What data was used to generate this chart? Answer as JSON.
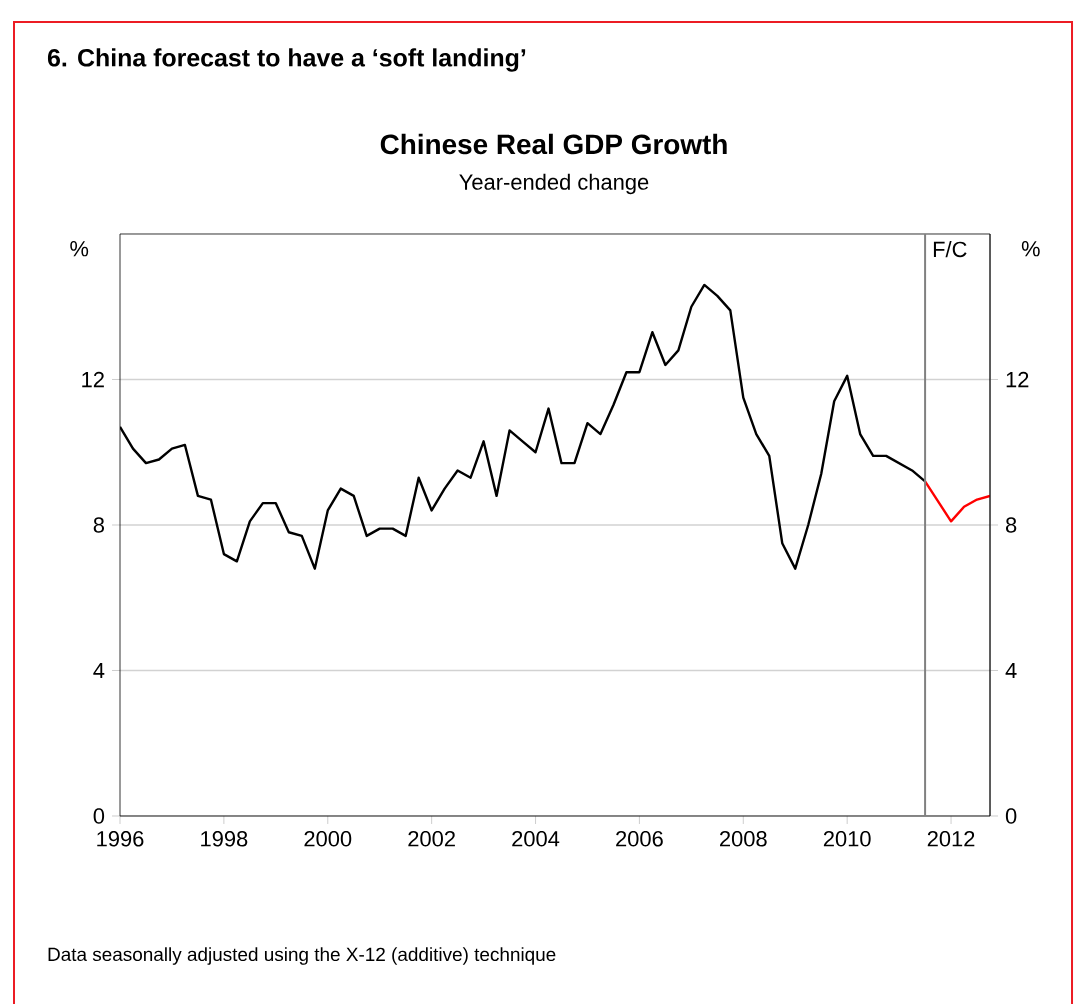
{
  "chart_data": {
    "type": "line",
    "title": "Chinese Real GDP Growth",
    "subtitle": "Year-ended change",
    "annotations": [
      "6. China forecast to have a ‘soft landing’",
      "Data seasonally adjusted using the X-12 (additive) technique"
    ],
    "ylabel": "%",
    "y2label": "%",
    "series": [
      {
        "color": "#000000",
        "x": [
          1996.0,
          1996.25,
          1996.5,
          1996.75,
          1997.0,
          1997.25,
          1997.5,
          1997.75,
          1998.0,
          1998.25,
          1998.5,
          1998.75,
          1999.0,
          1999.25,
          1999.5,
          1999.75,
          2000.0,
          2000.25,
          2000.5,
          2000.75,
          2001.0,
          2001.25,
          2001.5,
          2001.75,
          2002.0,
          2002.25,
          2002.5,
          2002.75,
          2003.0,
          2003.25,
          2003.5,
          2003.75,
          2004.0,
          2004.25,
          2004.5,
          2004.75,
          2005.0,
          2005.25,
          2005.5,
          2005.75,
          2006.0,
          2006.25,
          2006.5,
          2006.75,
          2007.0,
          2007.25,
          2007.5,
          2007.75,
          2008.0,
          2008.25,
          2008.5,
          2008.75,
          2009.0,
          2009.25,
          2009.5,
          2009.75,
          2010.0,
          2010.25,
          2010.5,
          2010.75,
          2011.0,
          2011.25,
          2011.5
        ],
        "values": [
          10.7,
          10.1,
          9.7,
          9.8,
          10.1,
          10.2,
          8.8,
          8.7,
          7.2,
          7.0,
          8.1,
          8.6,
          8.6,
          7.8,
          7.7,
          6.8,
          8.4,
          9.0,
          8.8,
          7.7,
          7.9,
          7.9,
          7.7,
          9.3,
          8.4,
          9.0,
          9.5,
          9.3,
          10.3,
          8.8,
          10.6,
          10.3,
          10.0,
          11.2,
          9.7,
          9.7,
          10.8,
          10.5,
          11.3,
          12.2,
          12.2,
          13.3,
          12.4,
          12.8,
          14.0,
          14.6,
          14.3,
          13.9,
          11.5,
          10.5,
          9.9,
          7.5,
          6.8,
          8.0,
          9.4,
          11.4,
          12.1,
          10.5,
          9.9,
          9.9,
          9.7,
          9.5,
          9.2
        ]
      },
      {
        "color": "#ff0000",
        "x": [
          2011.5,
          2012.0,
          2012.25,
          2012.5,
          2012.75
        ],
        "values": [
          9.2,
          8.1,
          8.5,
          8.7,
          8.8
        ]
      }
    ],
    "xlim": [
      1996,
      2012.75
    ],
    "xticks": [
      1996,
      1998,
      2000,
      2002,
      2004,
      2006,
      2008,
      2010,
      2012
    ],
    "ylim": [
      0,
      16
    ],
    "yticks": [
      0,
      4,
      8,
      12
    ],
    "y2lim": [
      0,
      16
    ],
    "y2ticks": [
      0,
      4,
      8,
      12
    ],
    "ref_lines": [
      {
        "axis": "x",
        "value": 2011.5,
        "label": "F/C",
        "color": "#808080"
      }
    ],
    "grid": "y",
    "marker": "none"
  }
}
